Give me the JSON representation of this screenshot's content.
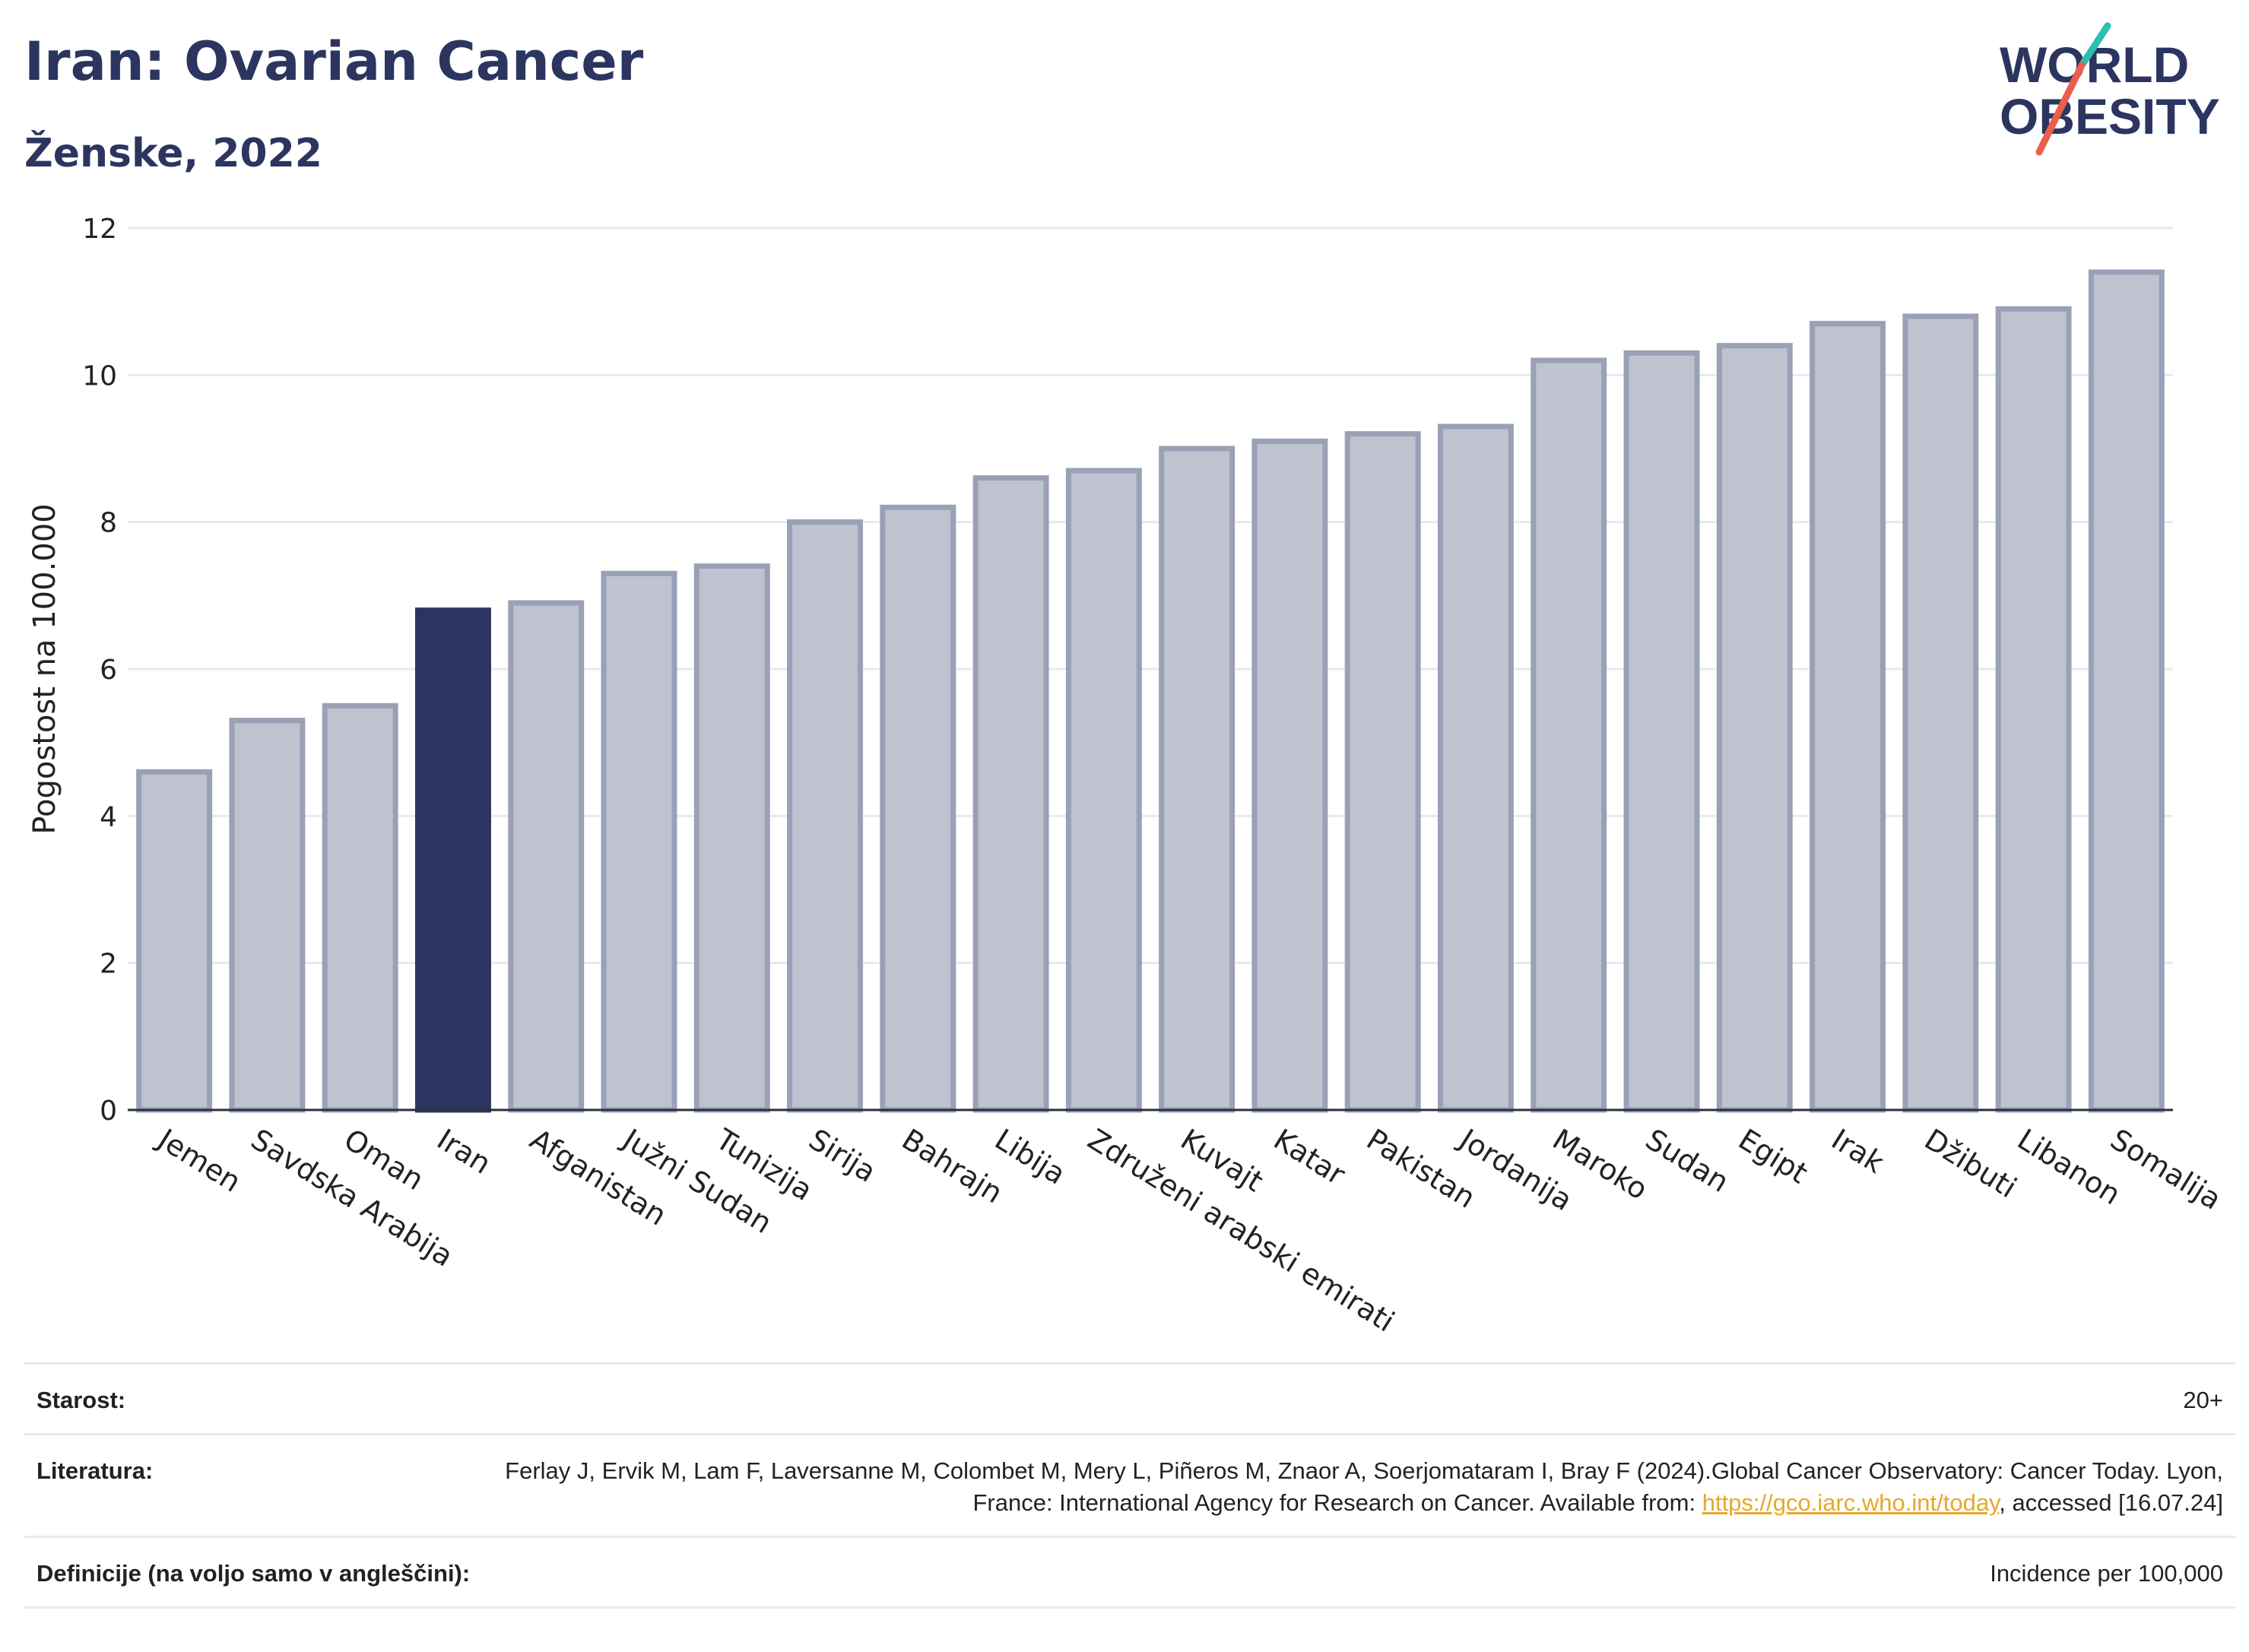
{
  "header": {
    "title": "Iran: Ovarian Cancer",
    "subtitle": "Ženske, 2022"
  },
  "logo": {
    "line1": "WORLD",
    "line2": "OBESITY",
    "accent_teal": "#2bbfb0",
    "accent_red": "#e8604c",
    "text_color": "#2c3560"
  },
  "colors": {
    "highlight_bar": "#2c3560",
    "other_bar_fill": "#bfc2cf",
    "other_bar_stroke": "#9aa0b5",
    "link": "#e6a82a"
  },
  "chart_data": {
    "type": "bar",
    "highlight": "Iran",
    "categories": [
      "Jemen",
      "Savdska Arabija",
      "Oman",
      "Iran",
      "Afganistan",
      "Južni Sudan",
      "Tunizija",
      "Sirija",
      "Bahrajn",
      "Libija",
      "Združeni arabski emirati",
      "Kuvajt",
      "Katar",
      "Pakistan",
      "Jordanija",
      "Maroko",
      "Sudan",
      "Egipt",
      "Irak",
      "Džibuti",
      "Libanon",
      "Somalija"
    ],
    "values": [
      4.6,
      5.3,
      5.5,
      6.8,
      6.9,
      7.3,
      7.4,
      8.0,
      8.2,
      8.6,
      8.7,
      9.0,
      9.1,
      9.2,
      9.3,
      10.2,
      10.3,
      10.4,
      10.7,
      10.8,
      10.9,
      11.4
    ],
    "ylabel": "Pogostost na 100.000",
    "xlabel": "",
    "ylim": [
      0,
      12
    ],
    "yticks": [
      "0",
      "2",
      "4",
      "6",
      "8",
      "10",
      "12"
    ],
    "grid": true
  },
  "info": {
    "age_label": "Starost:",
    "age_value": "20+",
    "literature_label": "Literatura:",
    "literature_text": "Ferlay J, Ervik M, Lam F, Laversanne M, Colombet M, Mery L, Piñeros M, Znaor A, Soerjomataram I, Bray F (2024).Global Cancer Observatory: Cancer Today. Lyon, France: International Agency for Research on Cancer. Available from:",
    "literature_link": "https://gco.iarc.who.int/today",
    "literature_suffix": ", accessed [16.07.24]",
    "definitions_label": "Definicije (na voljo samo v angleščini):",
    "definitions_value": "Incidence per 100,000"
  }
}
